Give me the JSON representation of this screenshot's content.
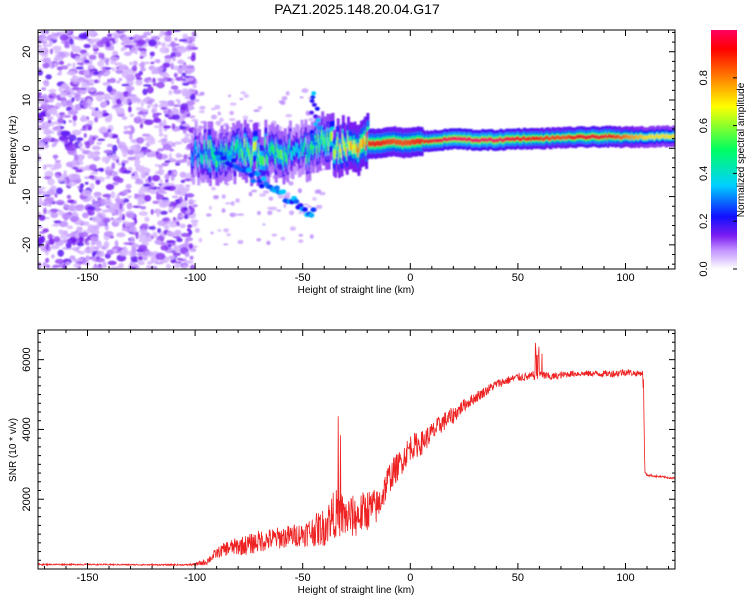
{
  "title": "PAZ1.2025.148.20.04.G17",
  "chart_data": [
    {
      "type": "heatmap",
      "xlabel": "Height of straight line (km)",
      "ylabel": "Frequency (Hz)",
      "xlim": [
        -173,
        123
      ],
      "ylim": [
        -25,
        24.5
      ],
      "xticks": [
        -150,
        -100,
        -50,
        0,
        50,
        100
      ],
      "yticks": [
        -20,
        -10,
        0,
        10,
        20
      ],
      "colorbar": {
        "label": "Normalized spectral amplitude",
        "range": [
          0,
          1
        ],
        "ticks": [
          "0.0",
          "0.2",
          "0.4",
          "0.6",
          "0.8"
        ],
        "tick_values": [
          0.0,
          0.2,
          0.4,
          0.6,
          0.8
        ],
        "colors": [
          "#ffffff",
          "#7a1cf0",
          "#1010ff",
          "#00d0ff",
          "#00ff60",
          "#ffff00",
          "#ff8000",
          "#ff0000",
          "#ff0060"
        ]
      },
      "ridge": {
        "x": [
          -100,
          -92,
          -85,
          -78,
          -72,
          -66,
          -60,
          -54,
          -48,
          -42,
          -36,
          -30,
          -25,
          -20,
          -14,
          -8,
          -2,
          4,
          10,
          20,
          30,
          40,
          50,
          60,
          70,
          80,
          90,
          100,
          110,
          123
        ],
        "freq": [
          -1.0,
          -1.2,
          -1.0,
          -0.5,
          -1.5,
          -0.5,
          -1.0,
          0.5,
          -0.5,
          1.5,
          0.5,
          0.0,
          1.0,
          1.0,
          1.0,
          1.5,
          1.0,
          1.5,
          1.5,
          2.0,
          1.7,
          1.7,
          2.0,
          2.0,
          2.2,
          2.3,
          2.4,
          2.3,
          2.4,
          2.5
        ],
        "amplitude": [
          0.4,
          0.6,
          0.5,
          0.6,
          0.7,
          0.5,
          0.6,
          0.4,
          0.5,
          0.6,
          0.7,
          0.75,
          0.8,
          0.9,
          0.9,
          0.85,
          0.85,
          0.9,
          0.95,
          1.0,
          1.0,
          1.0,
          0.95,
          0.9,
          0.85,
          0.95,
          0.95,
          0.8,
          0.7,
          0.7
        ]
      }
    },
    {
      "type": "line",
      "xlabel": "Height of straight line (km)",
      "ylabel": "SNR (10 * v/v)",
      "xlim": [
        -173,
        123
      ],
      "ylim": [
        0,
        6850
      ],
      "xticks": [
        -150,
        -100,
        -50,
        0,
        50,
        100
      ],
      "yticks": [
        2000,
        4000,
        6000
      ],
      "color": "#ee2222",
      "series": [
        {
          "name": "SNR",
          "x": [
            -173,
            -150,
            -120,
            -105,
            -100,
            -95,
            -90,
            -85,
            -80,
            -75,
            -70,
            -65,
            -60,
            -55,
            -50,
            -45,
            -40,
            -35,
            -30,
            -25,
            -20,
            -15,
            -10,
            -5,
            0,
            5,
            10,
            15,
            20,
            25,
            30,
            35,
            40,
            45,
            50,
            55,
            60,
            65,
            70,
            75,
            80,
            85,
            90,
            95,
            100,
            105,
            108,
            109,
            110,
            115,
            120,
            123
          ],
          "values": [
            130,
            130,
            120,
            120,
            130,
            200,
            450,
            600,
            650,
            700,
            800,
            850,
            900,
            950,
            1000,
            1100,
            1200,
            1600,
            1500,
            1500,
            1700,
            1800,
            2600,
            3000,
            3500,
            3600,
            3900,
            4200,
            4400,
            4700,
            4900,
            5100,
            5300,
            5400,
            5500,
            5500,
            5600,
            5500,
            5550,
            5600,
            5600,
            5600,
            5600,
            5600,
            5650,
            5600,
            5620,
            2750,
            2700,
            2650,
            2620,
            2600
          ],
          "noise": [
            20,
            20,
            20,
            20,
            40,
            100,
            150,
            220,
            260,
            300,
            320,
            320,
            320,
            330,
            350,
            450,
            550,
            700,
            650,
            600,
            600,
            500,
            450,
            400,
            380,
            350,
            300,
            280,
            250,
            180,
            160,
            150,
            130,
            120,
            120,
            120,
            150,
            110,
            100,
            90,
            90,
            90,
            90,
            110,
            110,
            80,
            80,
            40,
            40,
            30,
            30,
            30
          ]
        }
      ]
    }
  ]
}
